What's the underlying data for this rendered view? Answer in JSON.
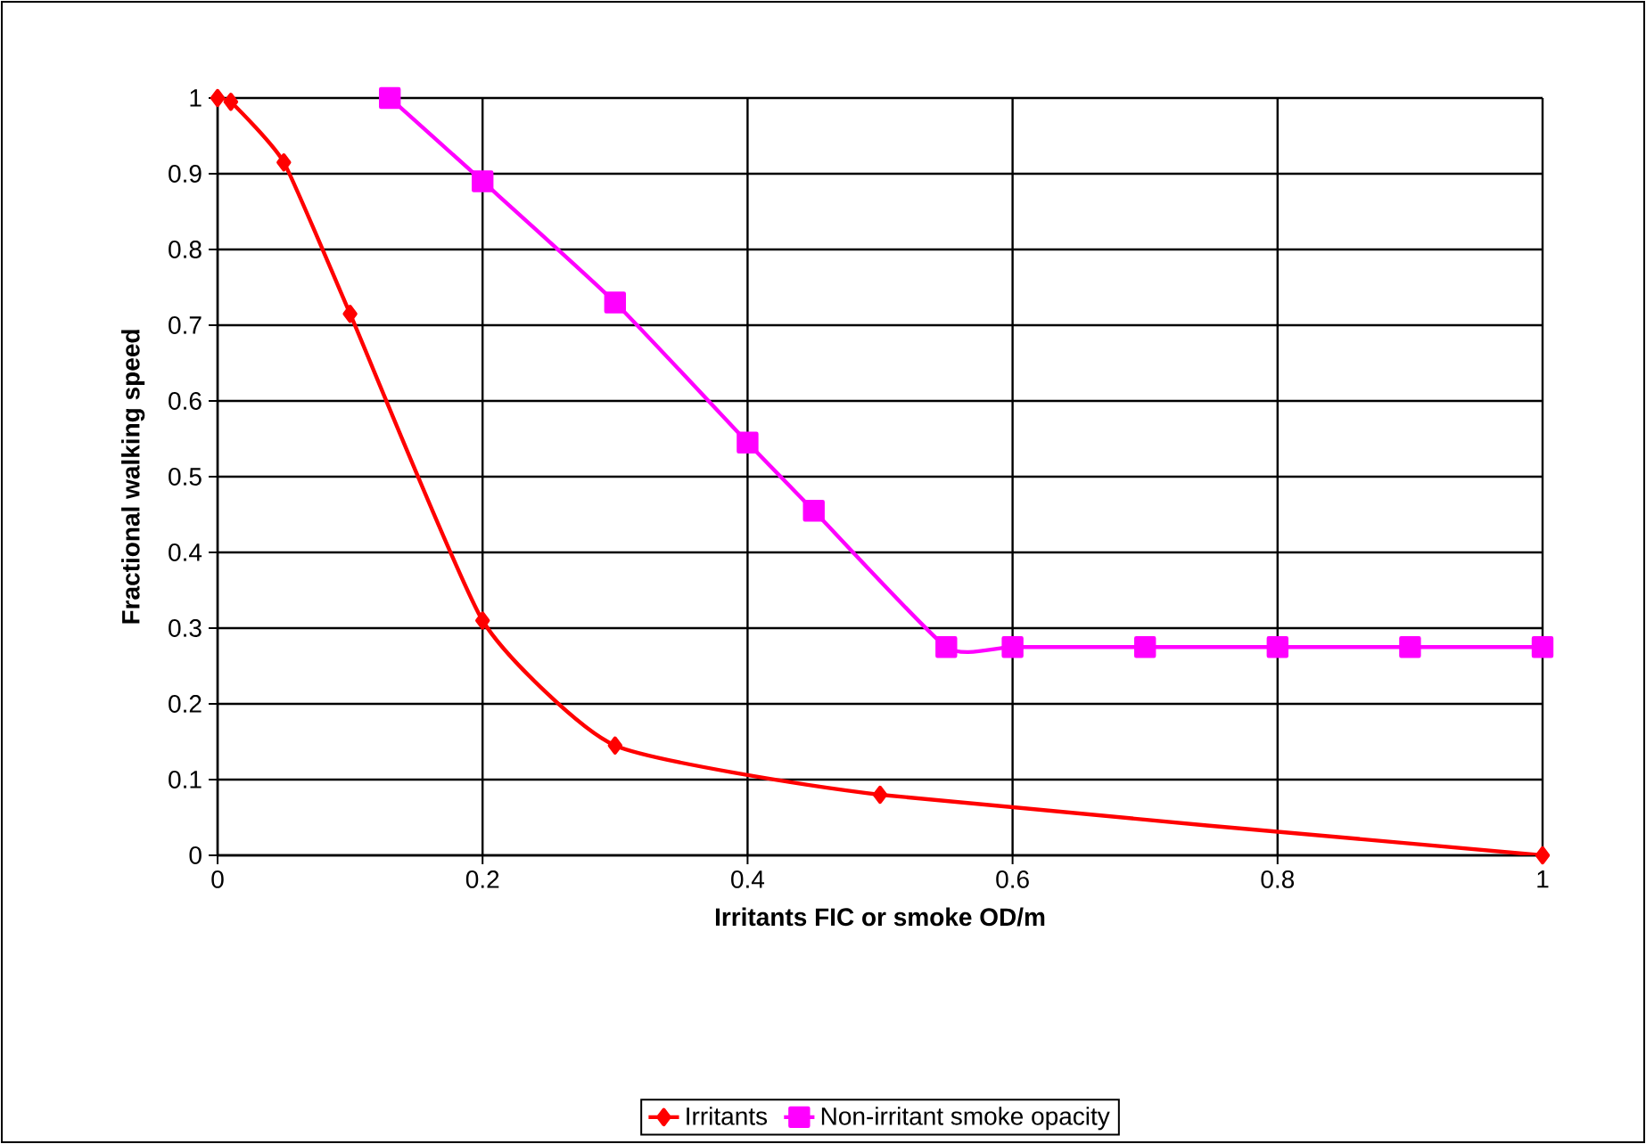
{
  "chart_data": {
    "type": "line",
    "xlabel": "Irritants FIC or smoke OD/m",
    "ylabel": "Fractional walking speed",
    "xlim": [
      0,
      1
    ],
    "ylim": [
      0,
      1
    ],
    "xticks": [
      0,
      0.2,
      0.4,
      0.6,
      0.8,
      1
    ],
    "yticks": [
      0,
      0.1,
      0.2,
      0.3,
      0.4,
      0.5,
      0.6,
      0.7,
      0.8,
      0.9,
      1
    ],
    "grid": true,
    "legend": "bottom",
    "series": [
      {
        "name": "Irritants",
        "color": "#ff0000",
        "marker": "diamond",
        "x": [
          0,
          0.01,
          0.05,
          0.1,
          0.2,
          0.3,
          0.5,
          1
        ],
        "values": [
          1,
          0.995,
          0.915,
          0.715,
          0.31,
          0.145,
          0.08,
          0
        ]
      },
      {
        "name": "Non-irritant smoke opacity",
        "color": "#ff00ff",
        "marker": "square",
        "x": [
          0.13,
          0.2,
          0.3,
          0.4,
          0.45,
          0.55,
          0.6,
          0.7,
          0.8,
          0.9,
          1
        ],
        "values": [
          1,
          0.89,
          0.73,
          0.545,
          0.455,
          0.275,
          0.275,
          0.275,
          0.275,
          0.275,
          0.275
        ]
      }
    ]
  }
}
